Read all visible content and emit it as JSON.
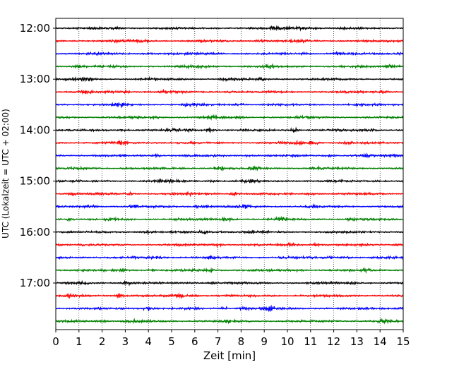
{
  "chart_data": {
    "type": "line",
    "title": "",
    "xlabel": "Zeit  [min]",
    "ylabel": "UTC (Lokalzeit = UTC + 02:00)",
    "xlim": [
      0,
      15
    ],
    "x_ticks": [
      "0",
      "1",
      "2",
      "3",
      "4",
      "5",
      "6",
      "7",
      "8",
      "9",
      "10",
      "11",
      "12",
      "13",
      "14",
      "15"
    ],
    "y_tick_labels": [
      "12:00",
      "13:00",
      "14:00",
      "15:00",
      "16:00",
      "17:00"
    ],
    "grid": "vertical dotted",
    "trace_interval_minutes": 15,
    "series_colors": [
      "#000000",
      "#ff0000",
      "#0000ff",
      "#008000"
    ],
    "traces": [
      "12:00",
      "12:15",
      "12:30",
      "12:45",
      "13:00",
      "13:15",
      "13:30",
      "13:45",
      "14:00",
      "14:15",
      "14:30",
      "14:45",
      "15:00",
      "15:15",
      "15:30",
      "15:45",
      "16:00",
      "16:15",
      "16:30",
      "16:45",
      "17:00",
      "17:15",
      "17:30",
      "17:45"
    ],
    "events": [
      {
        "trace": 22,
        "minute": 9.3
      },
      {
        "trace": 22,
        "minute": 4.0
      },
      {
        "trace": 14,
        "minute": 6.5
      },
      {
        "trace": 15,
        "minute": 9.7
      },
      {
        "trace": 8,
        "minute": 10.3
      },
      {
        "trace": 9,
        "minute": 2.8
      },
      {
        "trace": 3,
        "minute": 9.2
      }
    ]
  }
}
